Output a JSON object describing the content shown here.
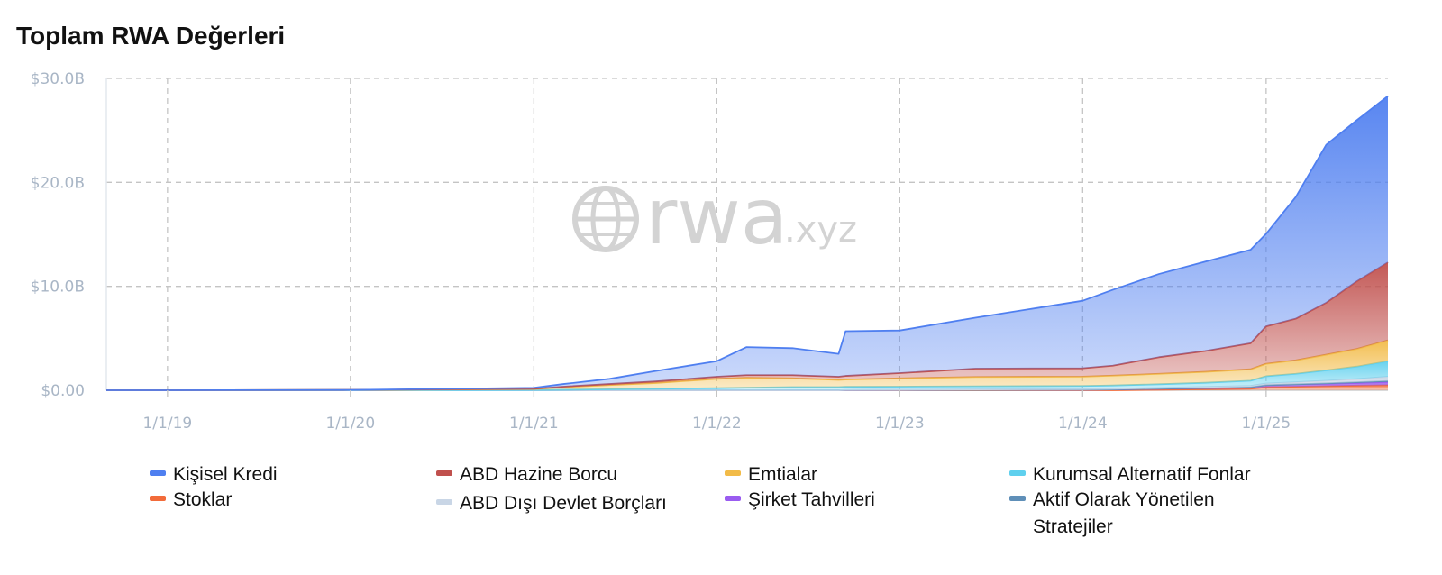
{
  "title": "Toplam RWA Değerleri",
  "watermark": {
    "text": "rwa",
    "suffix": ".xyz",
    "icon": "globe-icon"
  },
  "chart_data": {
    "type": "area",
    "stacked": true,
    "title": "Toplam RWA Değerleri",
    "xlabel": "",
    "ylabel": "",
    "x_ticks": [
      "1/1/19",
      "1/1/20",
      "1/1/21",
      "1/1/22",
      "1/1/23",
      "1/1/24",
      "1/1/25"
    ],
    "y_ticks": [
      "$0.00",
      "$10.0B",
      "$20.0B",
      "$30.0B"
    ],
    "ylim": [
      0,
      30
    ],
    "y_unit": "billion USD",
    "x_range": [
      "2018-09-01",
      "2025-09-01"
    ],
    "grid": true,
    "legend_position": "bottom",
    "x": [
      "2018-09-01",
      "2019-01-01",
      "2020-01-01",
      "2021-01-01",
      "2021-03-01",
      "2021-06-01",
      "2021-09-01",
      "2022-01-01",
      "2022-03-01",
      "2022-06-01",
      "2022-09-01",
      "2022-09-15",
      "2023-01-01",
      "2023-06-01",
      "2024-01-01",
      "2024-03-01",
      "2024-06-01",
      "2024-09-01",
      "2024-12-01",
      "2025-01-01",
      "2025-03-01",
      "2025-05-01",
      "2025-07-01",
      "2025-09-01"
    ],
    "series": [
      {
        "name": "Stoklar",
        "color": "#f26b3a",
        "values": [
          0,
          0,
          0,
          0,
          0,
          0,
          0,
          0,
          0,
          0,
          0,
          0,
          0,
          0,
          0,
          0,
          0.05,
          0.1,
          0.15,
          0.3,
          0.35,
          0.4,
          0.45,
          0.5
        ]
      },
      {
        "name": "Şirket Tahvilleri",
        "color": "#9a5cf0",
        "values": [
          0,
          0,
          0,
          0,
          0,
          0,
          0,
          0,
          0,
          0,
          0,
          0.01,
          0.02,
          0.04,
          0.06,
          0.08,
          0.1,
          0.12,
          0.15,
          0.18,
          0.2,
          0.22,
          0.25,
          0.3
        ]
      },
      {
        "name": "Aktif Olarak Yönetilen Stratejiler",
        "color": "#5f8fb8",
        "values": [
          0,
          0,
          0,
          0,
          0,
          0,
          0,
          0,
          0,
          0,
          0,
          0,
          0,
          0,
          0,
          0,
          0,
          0,
          0,
          0.02,
          0.03,
          0.05,
          0.08,
          0.1
        ]
      },
      {
        "name": "ABD Dışı Devlet Borçları",
        "color": "#c9d6e6",
        "values": [
          0,
          0,
          0,
          0,
          0,
          0,
          0,
          0,
          0,
          0,
          0,
          0.02,
          0.03,
          0.04,
          0.05,
          0.06,
          0.08,
          0.1,
          0.12,
          0.15,
          0.2,
          0.25,
          0.3,
          0.4
        ]
      },
      {
        "name": "Kurumsal Alternatif Fonlar",
        "color": "#5fd0ee",
        "values": [
          0,
          0,
          0.01,
          0.02,
          0.05,
          0.1,
          0.15,
          0.2,
          0.25,
          0.3,
          0.3,
          0.3,
          0.3,
          0.3,
          0.3,
          0.32,
          0.35,
          0.4,
          0.5,
          0.7,
          0.8,
          1.0,
          1.2,
          1.5
        ]
      },
      {
        "name": "Emtialar",
        "color": "#f2bb48",
        "values": [
          0,
          0,
          0.02,
          0.1,
          0.25,
          0.4,
          0.55,
          0.9,
          0.95,
          0.85,
          0.7,
          0.7,
          0.8,
          0.9,
          0.9,
          0.95,
          1.0,
          1.05,
          1.1,
          1.2,
          1.3,
          1.5,
          1.7,
          2.0
        ]
      },
      {
        "name": "ABD Hazine Borcu",
        "color": "#c0504d",
        "values": [
          0,
          0,
          0,
          0.02,
          0.05,
          0.1,
          0.15,
          0.2,
          0.25,
          0.3,
          0.3,
          0.35,
          0.5,
          0.8,
          0.8,
          0.95,
          1.6,
          2.0,
          2.5,
          3.6,
          4.0,
          5.0,
          6.5,
          7.5
        ]
      },
      {
        "name": "Kişisel Kredi",
        "color": "#4f7ff0",
        "values": [
          0,
          0,
          0,
          0.1,
          0.25,
          0.5,
          1.0,
          1.5,
          2.7,
          2.6,
          2.2,
          4.3,
          4.1,
          4.9,
          6.5,
          7.3,
          8.0,
          8.6,
          9.0,
          8.9,
          11.7,
          15.2,
          15.5,
          16.0
        ]
      }
    ]
  },
  "legend": {
    "items": [
      {
        "label": "Kişisel Kredi",
        "color": "#4f7ff0"
      },
      {
        "label": "ABD Hazine Borcu",
        "color": "#c0504d"
      },
      {
        "label": "Emtialar",
        "color": "#f2bb48"
      },
      {
        "label": "Kurumsal Alternatif Fonlar",
        "color": "#5fd0ee"
      },
      {
        "label": "Stoklar",
        "color": "#f26b3a"
      },
      {
        "label": "ABD Dışı Devlet Borçları",
        "color": "#c9d6e6"
      },
      {
        "label": "Şirket Tahvilleri",
        "color": "#9a5cf0"
      },
      {
        "label": "Aktif Olarak Yönetilen Stratejiler",
        "color": "#5f8fb8"
      }
    ]
  }
}
